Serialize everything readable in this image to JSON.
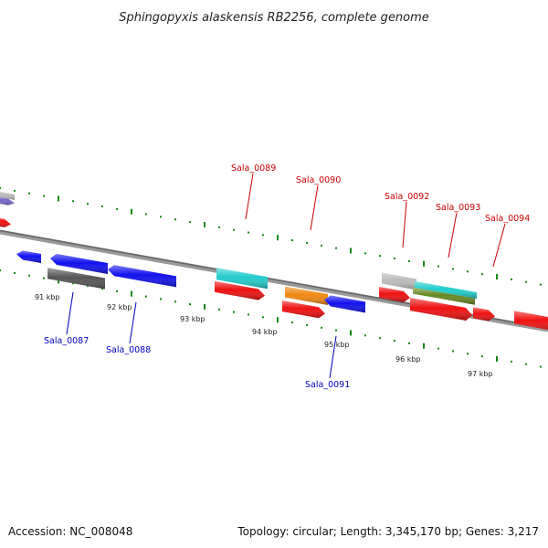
{
  "title": "Sphingopyxis alaskensis RB2256, complete genome",
  "footer": {
    "accession": "Accession: NC_008048",
    "topology": "Topology: circular; Length: 3,345,170 bp; Genes: 3,217"
  },
  "colors": {
    "forward_label": "#cc0000",
    "reverse_label": "#0000bb",
    "tick": "#118811",
    "backbone": "#777777",
    "red": "#ee1111",
    "blue": "#1111ee",
    "cyan": "#22cccc",
    "orange": "#ee8811",
    "gray": "#555555",
    "lightgray": "#bbbbbb",
    "olive": "#668822",
    "purple": "#7766cc"
  },
  "kbp_labels": [
    "91 kbp",
    "92 kbp",
    "93 kbp",
    "94 kbp",
    "95 kbp",
    "96 kbp",
    "97 kbp"
  ],
  "gene_labels": [
    {
      "name": "Sala_0087",
      "strand": "reverse"
    },
    {
      "name": "Sala_0088",
      "strand": "reverse"
    },
    {
      "name": "Sala_0089",
      "strand": "forward"
    },
    {
      "name": "Sala_0090",
      "strand": "forward"
    },
    {
      "name": "Sala_0091",
      "strand": "reverse"
    },
    {
      "name": "Sala_0092",
      "strand": "forward"
    },
    {
      "name": "Sala_0093",
      "strand": "forward"
    },
    {
      "name": "Sala_0094",
      "strand": "forward"
    }
  ]
}
